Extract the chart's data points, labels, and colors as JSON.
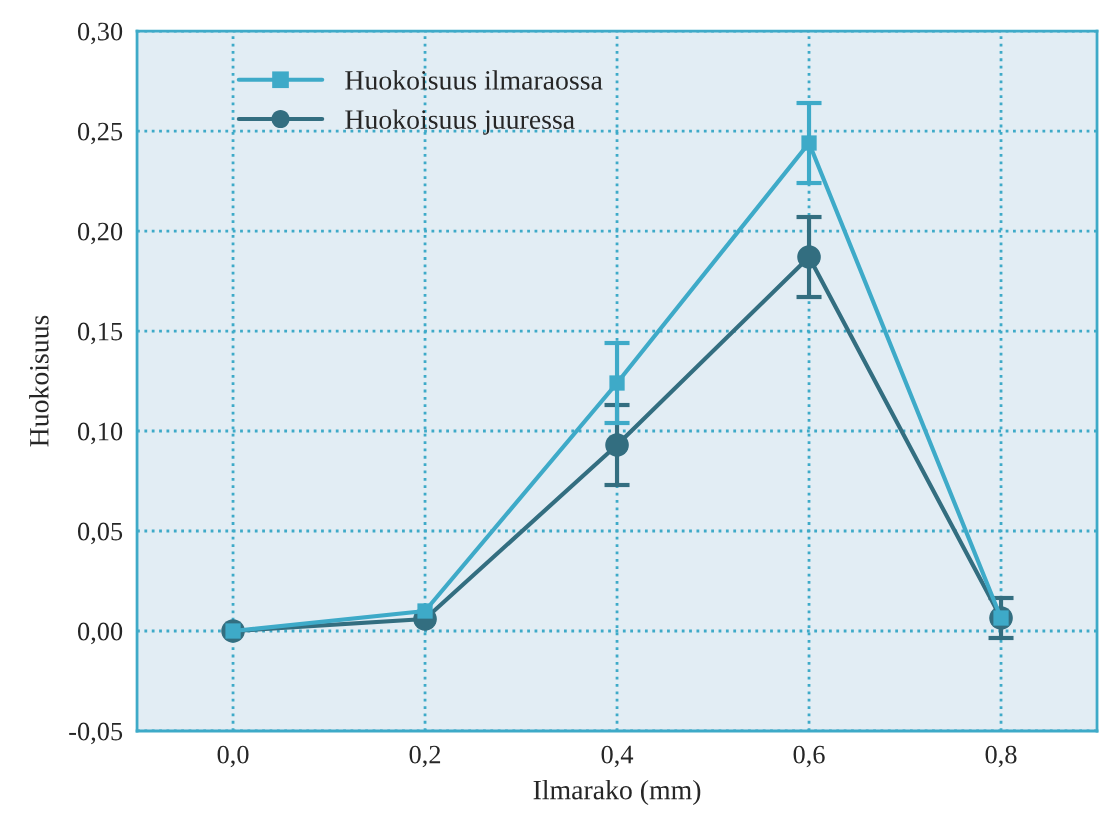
{
  "chart_data": {
    "type": "line",
    "xlabel": "Ilmarako (mm)",
    "ylabel": "Huokoisuus",
    "x": [
      0.0,
      0.2,
      0.4,
      0.6,
      0.8
    ],
    "series": [
      {
        "name": "Huokoisuus ilmaraossa",
        "color": "#3eaac8",
        "marker": "square",
        "values": [
          0.0,
          0.01,
          0.124,
          0.244,
          0.0065
        ],
        "errors": [
          null,
          null,
          0.02,
          0.02,
          null
        ]
      },
      {
        "name": "Huokoisuus juuressa",
        "color": "#336e80",
        "marker": "circle",
        "values": [
          0.0,
          0.006,
          0.093,
          0.187,
          0.0065
        ],
        "errors": [
          null,
          null,
          0.02,
          0.02,
          0.01
        ]
      }
    ],
    "xlim": [
      -0.1,
      0.9
    ],
    "ylim": [
      -0.05,
      0.3
    ],
    "xticks": [
      {
        "value": 0.0,
        "label": "0,0"
      },
      {
        "value": 0.2,
        "label": "0,2"
      },
      {
        "value": 0.4,
        "label": "0,4"
      },
      {
        "value": 0.6,
        "label": "0,6"
      },
      {
        "value": 0.8,
        "label": "0,8"
      }
    ],
    "yticks": [
      {
        "value": -0.05,
        "label": "-0,05"
      },
      {
        "value": 0.0,
        "label": "0,00"
      },
      {
        "value": 0.05,
        "label": "0,05"
      },
      {
        "value": 0.1,
        "label": "0,10"
      },
      {
        "value": 0.15,
        "label": "0,15"
      },
      {
        "value": 0.2,
        "label": "0,20"
      },
      {
        "value": 0.25,
        "label": "0,25"
      },
      {
        "value": 0.3,
        "label": "0,30"
      }
    ],
    "grid": true,
    "legend": "top left",
    "line_style": "solid"
  }
}
